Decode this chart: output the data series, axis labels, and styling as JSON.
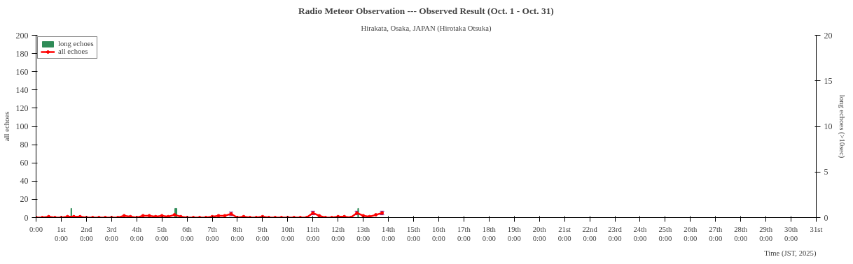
{
  "chart_data": {
    "type": "line",
    "title": "Radio Meteor Observation --- Observed Result (Oct. 1 - Oct. 31)",
    "subtitle": "Hirakata, Osaka, JAPAN (Hirotaka Otsuka)",
    "xlabel": "Time (JST, 2025)",
    "ylabel": "all echoes",
    "y2label": "long echoes (>10sec)",
    "xlim": [
      0,
      31
    ],
    "ylim": [
      0,
      200
    ],
    "y2lim": [
      0,
      20
    ],
    "yticks": [
      0,
      20,
      40,
      60,
      80,
      100,
      120,
      140,
      160,
      180,
      200
    ],
    "y2ticks": [
      0,
      5,
      10,
      15,
      20
    ],
    "xticks": [
      {
        "value": 0,
        "label": "0:00"
      },
      {
        "value": 1,
        "label": "1st 0:00"
      },
      {
        "value": 2,
        "label": "2nd 0:00"
      },
      {
        "value": 3,
        "label": "3rd 0:00"
      },
      {
        "value": 4,
        "label": "4th 0:00"
      },
      {
        "value": 5,
        "label": "5th 0:00"
      },
      {
        "value": 6,
        "label": "6th 0:00"
      },
      {
        "value": 7,
        "label": "7th 0:00"
      },
      {
        "value": 8,
        "label": "8th 0:00"
      },
      {
        "value": 9,
        "label": "9th 0:00"
      },
      {
        "value": 10,
        "label": "10th 0:00"
      },
      {
        "value": 11,
        "label": "11th 0:00"
      },
      {
        "value": 12,
        "label": "12th 0:00"
      },
      {
        "value": 13,
        "label": "13th 0:00"
      },
      {
        "value": 14,
        "label": "14th 0:00"
      },
      {
        "value": 15,
        "label": "15th 0:00"
      },
      {
        "value": 16,
        "label": "16th 0:00"
      },
      {
        "value": 17,
        "label": "17th 0:00"
      },
      {
        "value": 18,
        "label": "18th 0:00"
      },
      {
        "value": 19,
        "label": "19th 0:00"
      },
      {
        "value": 20,
        "label": "20th 0:00"
      },
      {
        "value": 21,
        "label": "21st 0:00"
      },
      {
        "value": 22,
        "label": "22nd 0:00"
      },
      {
        "value": 23,
        "label": "23rd 0:00"
      },
      {
        "value": 24,
        "label": "24th 0:00"
      },
      {
        "value": 25,
        "label": "25th 0:00"
      },
      {
        "value": 26,
        "label": "26th 0:00"
      },
      {
        "value": 27,
        "label": "27th 0:00"
      },
      {
        "value": 28,
        "label": "28th 0:00"
      },
      {
        "value": 29,
        "label": "29th 0:00"
      },
      {
        "value": 30,
        "label": "30th 0:00"
      },
      {
        "value": 31,
        "label": "31st"
      }
    ],
    "grid": false,
    "legend": "top left",
    "series": [
      {
        "name": "long echoes",
        "type": "bar",
        "axis": "y2",
        "color": "#2e8b57",
        "x": [
          1.4,
          5.53,
          5.58,
          12.8
        ],
        "values": [
          1,
          1,
          1,
          1
        ]
      },
      {
        "name": "all echoes",
        "color": "#ff0000",
        "marker": "circle",
        "x": [
          0,
          0.25,
          0.5,
          0.75,
          1,
          1.25,
          1.5,
          1.75,
          2,
          2.25,
          2.5,
          2.75,
          3,
          3.25,
          3.5,
          3.75,
          4,
          4.25,
          4.5,
          4.75,
          5,
          5.25,
          5.5,
          5.75,
          6,
          6.25,
          6.5,
          6.75,
          7,
          7.25,
          7.5,
          7.75,
          8,
          8.25,
          8.5,
          8.75,
          9,
          9.25,
          9.5,
          9.75,
          10,
          10.25,
          10.5,
          10.75,
          11,
          11.25,
          11.5,
          11.75,
          12,
          12.25,
          12.5,
          12.75,
          13,
          13.25,
          13.5,
          13.75
        ],
        "values": [
          0,
          0,
          1,
          0,
          0,
          1,
          1,
          1,
          0,
          0,
          0,
          0,
          0,
          0,
          2,
          1,
          0,
          2,
          2,
          1,
          2,
          1,
          3,
          1,
          0,
          0,
          0,
          0,
          1,
          2,
          2,
          4,
          0,
          1,
          0,
          0,
          1,
          0,
          0,
          0,
          0,
          0,
          0,
          0,
          5,
          2,
          0,
          0,
          1,
          1,
          0,
          5,
          2,
          1,
          3,
          5
        ],
        "errors": [
          null,
          null,
          null,
          null,
          null,
          null,
          null,
          null,
          null,
          null,
          null,
          null,
          null,
          null,
          null,
          null,
          null,
          null,
          null,
          null,
          null,
          null,
          null,
          null,
          null,
          null,
          null,
          null,
          null,
          null,
          null,
          2,
          null,
          null,
          null,
          null,
          null,
          null,
          null,
          null,
          null,
          null,
          null,
          null,
          2,
          null,
          null,
          null,
          null,
          null,
          null,
          2,
          null,
          null,
          null,
          2
        ]
      }
    ]
  }
}
